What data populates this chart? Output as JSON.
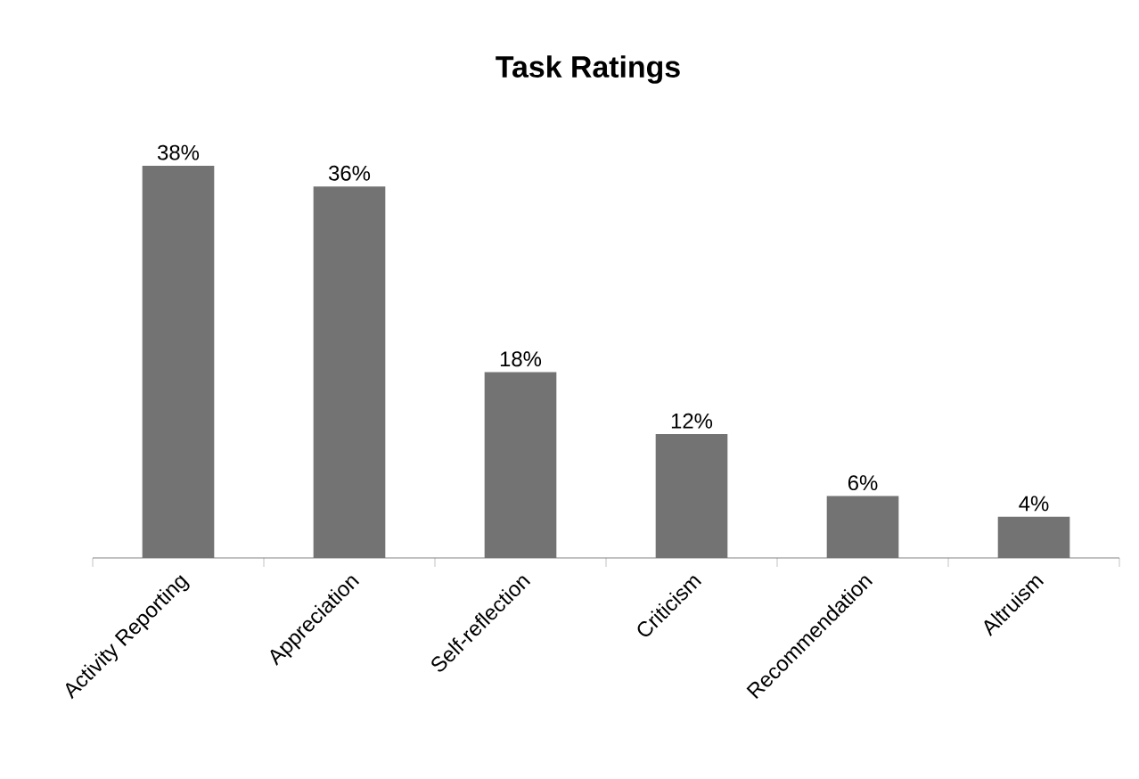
{
  "chart_data": {
    "type": "bar",
    "title": "Task Ratings",
    "categories": [
      "Activity Reporting",
      "Appreciation",
      "Self-reflection",
      "Criticism",
      "Recommendation",
      "Altruism"
    ],
    "values": [
      38,
      36,
      18,
      12,
      6,
      4
    ],
    "value_labels": [
      "38%",
      "36%",
      "18%",
      "12%",
      "6%",
      "4%"
    ],
    "color": "#737373"
  }
}
